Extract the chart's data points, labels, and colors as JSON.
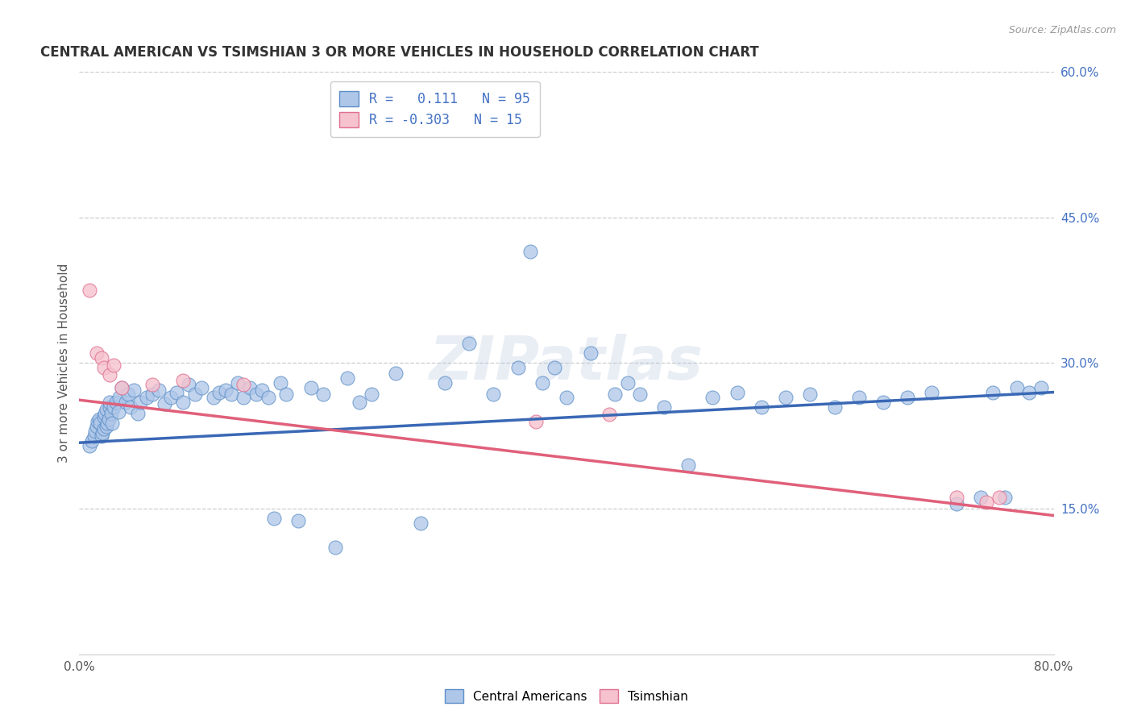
{
  "title": "CENTRAL AMERICAN VS TSIMSHIAN 3 OR MORE VEHICLES IN HOUSEHOLD CORRELATION CHART",
  "source": "Source: ZipAtlas.com",
  "ylabel": "3 or more Vehicles in Household",
  "xmin": 0.0,
  "xmax": 0.8,
  "ymin": 0.0,
  "ymax": 0.6,
  "yticks_right": [
    0.15,
    0.3,
    0.45,
    0.6
  ],
  "ytick_labels_right": [
    "15.0%",
    "30.0%",
    "45.0%",
    "60.0%"
  ],
  "blue_R": 0.111,
  "blue_N": 95,
  "pink_R": -0.303,
  "pink_N": 15,
  "blue_color": "#aec6e8",
  "blue_edge_color": "#5b8ec7",
  "pink_color": "#f5c2ce",
  "pink_edge_color": "#e07090",
  "blue_line_color": "#3a68b5",
  "pink_line_color": "#e0607a",
  "legend_label_blue": "Central Americans",
  "legend_label_pink": "Tsimshian",
  "watermark": "ZIPatlas",
  "blue_x": [
    0.008,
    0.01,
    0.012,
    0.013,
    0.014,
    0.015,
    0.016,
    0.017,
    0.018,
    0.019,
    0.02,
    0.02,
    0.021,
    0.022,
    0.022,
    0.023,
    0.024,
    0.025,
    0.025,
    0.026,
    0.027,
    0.028,
    0.03,
    0.032,
    0.033,
    0.035,
    0.038,
    0.04,
    0.042,
    0.045,
    0.048,
    0.05,
    0.055,
    0.06,
    0.065,
    0.07,
    0.075,
    0.08,
    0.085,
    0.09,
    0.095,
    0.1,
    0.11,
    0.115,
    0.12,
    0.125,
    0.13,
    0.135,
    0.14,
    0.145,
    0.15,
    0.155,
    0.16,
    0.165,
    0.17,
    0.18,
    0.19,
    0.2,
    0.21,
    0.22,
    0.23,
    0.24,
    0.26,
    0.28,
    0.3,
    0.32,
    0.34,
    0.36,
    0.37,
    0.38,
    0.39,
    0.4,
    0.42,
    0.44,
    0.45,
    0.46,
    0.48,
    0.5,
    0.52,
    0.54,
    0.56,
    0.58,
    0.6,
    0.62,
    0.64,
    0.66,
    0.68,
    0.7,
    0.72,
    0.74,
    0.75,
    0.76,
    0.77,
    0.78,
    0.79
  ],
  "blue_y": [
    0.215,
    0.22,
    0.225,
    0.23,
    0.235,
    0.24,
    0.242,
    0.238,
    0.225,
    0.228,
    0.232,
    0.245,
    0.248,
    0.235,
    0.252,
    0.238,
    0.242,
    0.255,
    0.26,
    0.248,
    0.238,
    0.255,
    0.26,
    0.25,
    0.265,
    0.275,
    0.26,
    0.268,
    0.255,
    0.272,
    0.248,
    0.26,
    0.265,
    0.268,
    0.272,
    0.258,
    0.265,
    0.27,
    0.26,
    0.278,
    0.268,
    0.275,
    0.265,
    0.27,
    0.272,
    0.268,
    0.28,
    0.265,
    0.275,
    0.268,
    0.272,
    0.265,
    0.14,
    0.28,
    0.268,
    0.138,
    0.275,
    0.268,
    0.11,
    0.285,
    0.26,
    0.268,
    0.29,
    0.135,
    0.28,
    0.32,
    0.268,
    0.295,
    0.415,
    0.28,
    0.295,
    0.265,
    0.31,
    0.268,
    0.28,
    0.268,
    0.255,
    0.195,
    0.265,
    0.27,
    0.255,
    0.265,
    0.268,
    0.255,
    0.265,
    0.26,
    0.265,
    0.27,
    0.155,
    0.162,
    0.27,
    0.162,
    0.275,
    0.27,
    0.275
  ],
  "pink_x": [
    0.008,
    0.014,
    0.018,
    0.02,
    0.025,
    0.028,
    0.035,
    0.06,
    0.085,
    0.135,
    0.375,
    0.435,
    0.72,
    0.745,
    0.755
  ],
  "pink_y": [
    0.375,
    0.31,
    0.305,
    0.295,
    0.288,
    0.298,
    0.275,
    0.278,
    0.282,
    0.278,
    0.24,
    0.247,
    0.162,
    0.157,
    0.162
  ],
  "blue_trend_x0": 0.0,
  "blue_trend_y0": 0.218,
  "blue_trend_x1": 0.8,
  "blue_trend_y1": 0.27,
  "pink_trend_x0": 0.0,
  "pink_trend_y0": 0.262,
  "pink_trend_x1": 0.8,
  "pink_trend_y1": 0.143
}
